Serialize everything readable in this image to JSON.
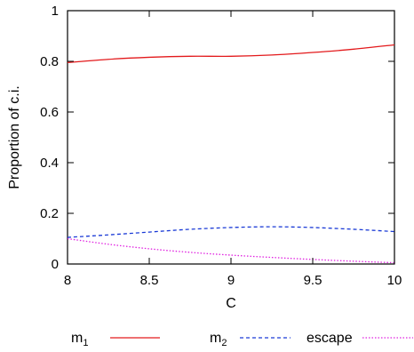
{
  "chart_data": {
    "type": "line",
    "title": "",
    "xlabel": "C",
    "ylabel": "Proportion of c.i.",
    "xlim": [
      8,
      10
    ],
    "ylim": [
      0,
      1
    ],
    "xticks": [
      {
        "value": 8,
        "label": "8"
      },
      {
        "value": 8.5,
        "label": "8.5"
      },
      {
        "value": 9,
        "label": "9"
      },
      {
        "value": 9.5,
        "label": "9.5"
      },
      {
        "value": 10,
        "label": "10"
      }
    ],
    "yticks": [
      {
        "value": 0,
        "label": "0"
      },
      {
        "value": 0.2,
        "label": "0.2"
      },
      {
        "value": 0.4,
        "label": "0.4"
      },
      {
        "value": 0.6,
        "label": "0.6"
      },
      {
        "value": 0.8,
        "label": "0.8"
      },
      {
        "value": 1,
        "label": "1"
      }
    ],
    "grid": false,
    "legend_position": "bottom",
    "series": [
      {
        "name": "m",
        "subscript": "1",
        "color": "#e31a1c",
        "dash": "solid",
        "x": [
          8,
          8.25,
          8.5,
          8.75,
          9,
          9.25,
          9.5,
          9.75,
          10
        ],
        "y": [
          0.795,
          0.808,
          0.816,
          0.82,
          0.82,
          0.825,
          0.835,
          0.848,
          0.865
        ]
      },
      {
        "name": "m",
        "subscript": "2",
        "color": "#1a3ad6",
        "dash": "dashed",
        "x": [
          8,
          8.25,
          8.5,
          8.75,
          9,
          9.25,
          9.5,
          9.75,
          10
        ],
        "y": [
          0.105,
          0.115,
          0.126,
          0.137,
          0.144,
          0.147,
          0.144,
          0.137,
          0.128
        ]
      },
      {
        "name": "escape",
        "subscript": "",
        "color": "#e020e0",
        "dash": "dotted",
        "x": [
          8,
          8.25,
          8.5,
          8.75,
          9,
          9.25,
          9.5,
          9.75,
          10
        ],
        "y": [
          0.1,
          0.078,
          0.06,
          0.046,
          0.035,
          0.026,
          0.018,
          0.011,
          0.005
        ]
      }
    ]
  }
}
